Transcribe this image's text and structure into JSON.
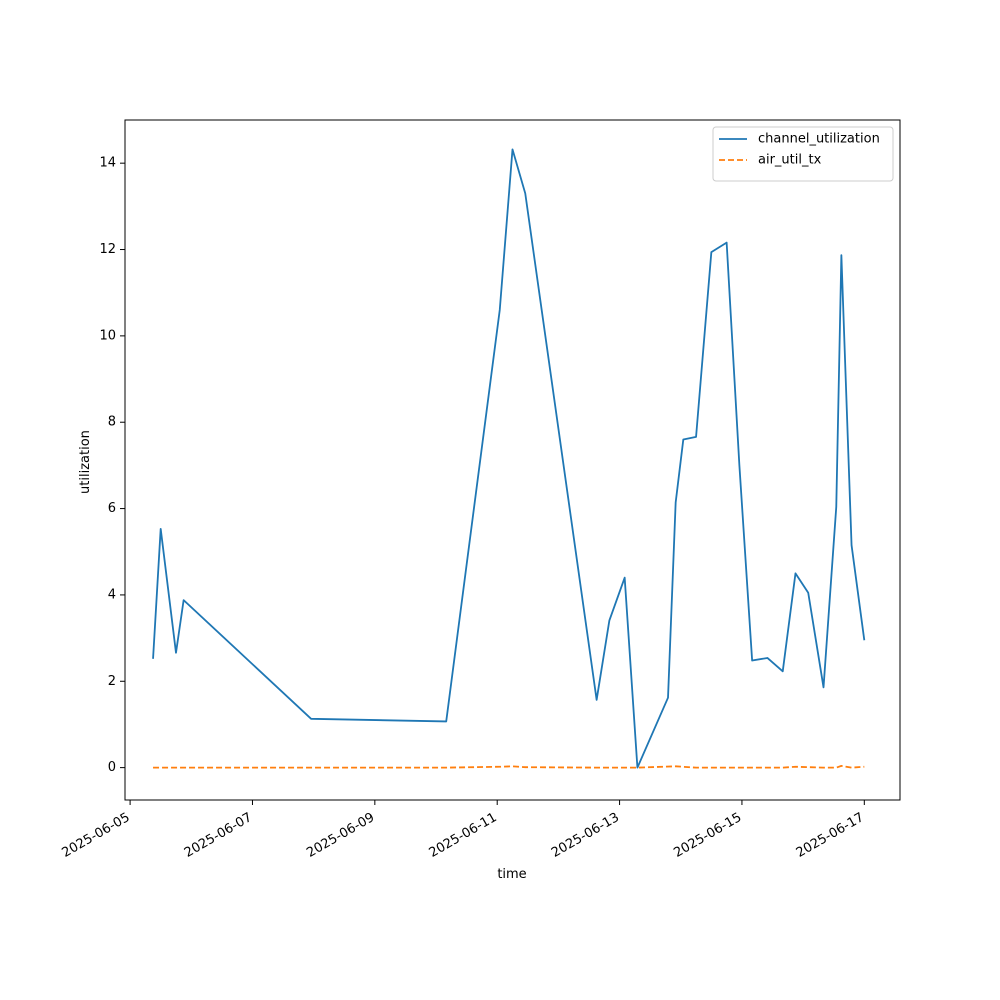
{
  "chart_data": {
    "type": "line",
    "xlabel": "time",
    "ylabel": "utilization",
    "x_type": "date",
    "xlim": [
      "2025-06-04 22:00",
      "2025-06-17 14:00"
    ],
    "ylim": [
      -0.75,
      15
    ],
    "x_ticks": [
      "2025-06-05",
      "2025-06-07",
      "2025-06-09",
      "2025-06-11",
      "2025-06-13",
      "2025-06-15",
      "2025-06-17"
    ],
    "y_ticks": [
      0,
      2,
      4,
      6,
      8,
      10,
      12,
      14
    ],
    "legend_position": "top-right",
    "grid": false,
    "series": [
      {
        "name": "channel_utilization",
        "color": "#1f77b4",
        "dash": "solid",
        "points": [
          [
            "2025-06-05 09:00",
            2.52
          ],
          [
            "2025-06-05 12:00",
            5.53
          ],
          [
            "2025-06-05 18:00",
            2.66
          ],
          [
            "2025-06-05 21:00",
            3.88
          ],
          [
            "2025-06-07 23:00",
            1.13
          ],
          [
            "2025-06-10 04:00",
            1.07
          ],
          [
            "2025-06-11 01:00",
            10.6
          ],
          [
            "2025-06-11 06:00",
            14.32
          ],
          [
            "2025-06-11 11:00",
            13.3
          ],
          [
            "2025-06-12 15:00",
            1.57
          ],
          [
            "2025-06-12 20:00",
            3.41
          ],
          [
            "2025-06-13 02:00",
            4.4
          ],
          [
            "2025-06-13 07:00",
            0.0
          ],
          [
            "2025-06-13 19:00",
            1.62
          ],
          [
            "2025-06-13 22:00",
            6.14
          ],
          [
            "2025-06-14 01:00",
            7.6
          ],
          [
            "2025-06-14 06:00",
            7.66
          ],
          [
            "2025-06-14 12:00",
            11.94
          ],
          [
            "2025-06-14 18:00",
            12.16
          ],
          [
            "2025-06-14 23:00",
            7.0
          ],
          [
            "2025-06-15 04:00",
            2.48
          ],
          [
            "2025-06-15 10:00",
            2.54
          ],
          [
            "2025-06-15 16:00",
            2.23
          ],
          [
            "2025-06-15 21:00",
            4.5
          ],
          [
            "2025-06-16 02:00",
            4.05
          ],
          [
            "2025-06-16 08:00",
            1.86
          ],
          [
            "2025-06-16 13:00",
            6.04
          ],
          [
            "2025-06-16 15:00",
            11.87
          ],
          [
            "2025-06-16 19:00",
            5.15
          ],
          [
            "2025-06-17 00:00",
            2.95
          ]
        ]
      },
      {
        "name": "air_util_tx",
        "color": "#ff7f0e",
        "dash": "dashed",
        "points": [
          [
            "2025-06-05 09:00",
            0.0
          ],
          [
            "2025-06-05 12:00",
            0.0
          ],
          [
            "2025-06-05 21:00",
            0.0
          ],
          [
            "2025-06-07 23:00",
            0.0
          ],
          [
            "2025-06-10 04:00",
            0.0
          ],
          [
            "2025-06-11 01:00",
            0.02
          ],
          [
            "2025-06-11 06:00",
            0.03
          ],
          [
            "2025-06-11 11:00",
            0.01
          ],
          [
            "2025-06-12 15:00",
            0.0
          ],
          [
            "2025-06-13 07:00",
            0.0
          ],
          [
            "2025-06-13 22:00",
            0.03
          ],
          [
            "2025-06-14 06:00",
            0.0
          ],
          [
            "2025-06-14 18:00",
            0.0
          ],
          [
            "2025-06-15 16:00",
            0.0
          ],
          [
            "2025-06-15 21:00",
            0.02
          ],
          [
            "2025-06-16 08:00",
            0.0
          ],
          [
            "2025-06-16 13:00",
            0.0
          ],
          [
            "2025-06-16 15:00",
            0.04
          ],
          [
            "2025-06-16 19:00",
            0.0
          ],
          [
            "2025-06-17 00:00",
            0.02
          ]
        ]
      }
    ]
  }
}
